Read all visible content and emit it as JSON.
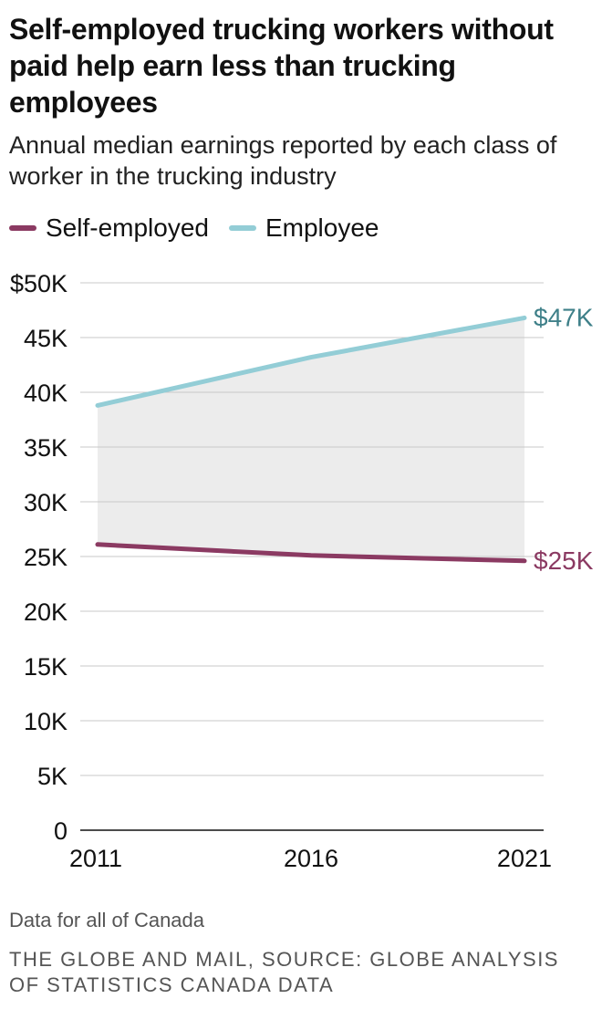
{
  "header": {
    "title": "Self-employed trucking workers without paid help earn less than trucking employees",
    "subtitle": "Annual median earnings reported by each class of worker in the trucking industry"
  },
  "legend": [
    {
      "label": "Self-employed",
      "color": "#8b3a62"
    },
    {
      "label": "Employee",
      "color": "#93cdd6"
    }
  ],
  "chart_data": {
    "type": "line",
    "x": [
      "2011",
      "2016",
      "2021"
    ],
    "series": [
      {
        "name": "Self-employed",
        "values": [
          26100,
          25100,
          24600
        ],
        "color": "#8b3a62",
        "end_label": "$25K",
        "end_label_color": "#8b3a62"
      },
      {
        "name": "Employee",
        "values": [
          38800,
          43200,
          46800
        ],
        "color": "#93cdd6",
        "end_label": "$47K",
        "end_label_color": "#3f8089"
      }
    ],
    "y_ticks": [
      0,
      5000,
      10000,
      15000,
      20000,
      25000,
      30000,
      35000,
      40000,
      45000,
      50000
    ],
    "y_tick_labels": [
      "0",
      "5K",
      "10K",
      "15K",
      "20K",
      "25K",
      "30K",
      "35K",
      "40K",
      "45K",
      "$50K"
    ],
    "ylim": [
      0,
      50000
    ],
    "fill_between": true,
    "fill_color": "#ececec",
    "grid": true
  },
  "footer": {
    "note": "Data for all of Canada",
    "source": "THE GLOBE AND MAIL, SOURCE: GLOBE ANALYSIS OF STATISTICS CANADA DATA"
  }
}
